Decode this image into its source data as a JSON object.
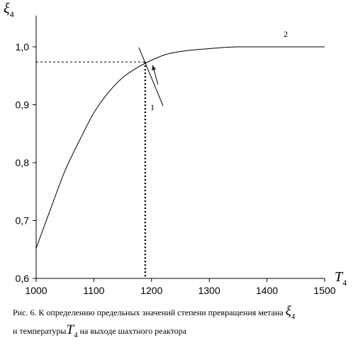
{
  "chart_data": {
    "type": "line",
    "title": "",
    "xlabel": "T",
    "xlabel_sub": "4",
    "ylabel": "ξ",
    "ylabel_sub": "4",
    "xlim": [
      1000,
      1500
    ],
    "ylim": [
      0.6,
      1.03
    ],
    "x_ticks": [
      "1000",
      "1100",
      "1200",
      "1300",
      "1400",
      "1500"
    ],
    "y_ticks": [
      "0,6",
      "0,7",
      "0,8",
      "0,9",
      "1,0"
    ],
    "grid": false,
    "series": [
      {
        "name": "2",
        "x": [
          1000,
          1025,
          1050,
          1075,
          1100,
          1125,
          1150,
          1175,
          1200,
          1225,
          1250,
          1275,
          1300,
          1325,
          1350,
          1375,
          1400,
          1450,
          1500
        ],
        "y": [
          0.652,
          0.72,
          0.786,
          0.838,
          0.886,
          0.921,
          0.947,
          0.964,
          0.977,
          0.987,
          0.992,
          0.995,
          0.997,
          0.999,
          1.0,
          1.0,
          1.0,
          1.0,
          1.0
        ]
      },
      {
        "name": "1",
        "x": [
          1178,
          1220
        ],
        "y": [
          0.999,
          0.898
        ]
      }
    ],
    "intersection": {
      "x": 1189,
      "y": 0.974
    },
    "arrow": {
      "from": {
        "x": 1211,
        "y": 0.935
      },
      "to": {
        "x": 1202,
        "y": 0.968
      }
    }
  },
  "caption": {
    "line1_prefix": "Рис. 6. К определению предельных значений степени превращения метана",
    "line1_symbol": "ξ",
    "line1_sub": "4",
    "line2_prefix": "и температуры",
    "line2_symbol": "T",
    "line2_sub": "4",
    "line2_suffix": "на выходе шахтного реактора"
  }
}
